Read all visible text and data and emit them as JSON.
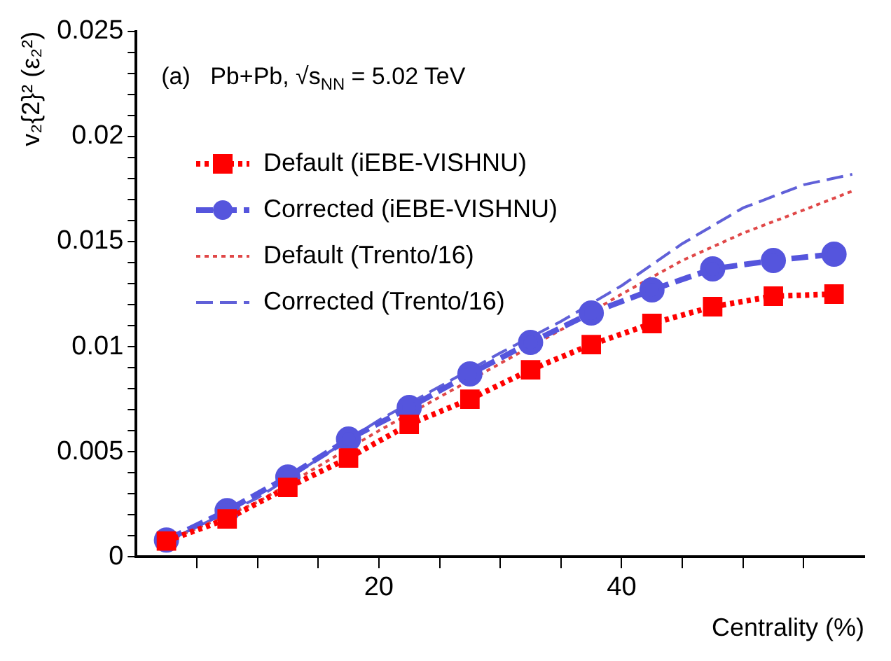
{
  "chart_data": {
    "type": "line",
    "xlabel": "Centrality (%)",
    "ylabel": "v₂{2}² (ε₂²)",
    "annotations": [
      "(a)   Pb+Pb, √s$_{NN}$ = 5.02 TeV"
    ],
    "xlim": [
      0,
      60
    ],
    "ylim": [
      0,
      0.025
    ],
    "xticks": [
      {
        "value": 5,
        "label": null
      },
      {
        "value": 10,
        "label": null
      },
      {
        "value": 15,
        "label": null
      },
      20,
      {
        "value": 25,
        "label": null
      },
      {
        "value": 30,
        "label": null
      },
      {
        "value": 35,
        "label": null
      },
      40,
      {
        "value": 45,
        "label": null
      },
      {
        "value": 50,
        "label": null
      },
      {
        "value": 55,
        "label": null
      }
    ],
    "yticks": [
      0,
      {
        "value": 0.001,
        "label": null
      },
      {
        "value": 0.002,
        "label": null
      },
      {
        "value": 0.003,
        "label": null
      },
      {
        "value": 0.004,
        "label": null
      },
      0.005,
      {
        "value": 0.006,
        "label": null
      },
      {
        "value": 0.007,
        "label": null
      },
      {
        "value": 0.008,
        "label": null
      },
      {
        "value": 0.009,
        "label": null
      },
      0.01,
      {
        "value": 0.011,
        "label": null
      },
      {
        "value": 0.012,
        "label": null
      },
      {
        "value": 0.013,
        "label": null
      },
      {
        "value": 0.014,
        "label": null
      },
      0.015,
      {
        "value": 0.016,
        "label": null
      },
      {
        "value": 0.017,
        "label": null
      },
      {
        "value": 0.018,
        "label": null
      },
      {
        "value": 0.019,
        "label": null
      },
      0.02,
      {
        "value": 0.021,
        "label": null
      },
      {
        "value": 0.022,
        "label": null
      },
      {
        "value": 0.023,
        "label": null
      },
      {
        "value": 0.024,
        "label": null
      },
      0.025
    ],
    "grid": false,
    "legend": "top left",
    "series": [
      {
        "name": "Default (iEBE-VISHNU)",
        "color": "#ff0000",
        "marker": "square",
        "line_style": "dotted",
        "x": [
          2.5,
          7.5,
          12.5,
          17.5,
          22.5,
          27.5,
          32.5,
          37.5,
          42.5,
          47.5,
          52.5,
          57.5
        ],
        "values": [
          0.00075,
          0.0018,
          0.0033,
          0.0047,
          0.0063,
          0.0075,
          0.0089,
          0.0101,
          0.0111,
          0.0119,
          0.0124,
          0.0125
        ]
      },
      {
        "name": "Corrected (iEBE-VISHNU)",
        "color": "#5555dd",
        "marker": "circle",
        "line_style": "dashed",
        "x": [
          2.5,
          7.5,
          12.5,
          17.5,
          22.5,
          27.5,
          32.5,
          37.5,
          42.5,
          47.5,
          52.5,
          57.5
        ],
        "values": [
          0.0008,
          0.0022,
          0.0038,
          0.0056,
          0.0071,
          0.0087,
          0.0102,
          0.0116,
          0.0127,
          0.0137,
          0.0141,
          0.0144
        ]
      },
      {
        "name": "Default (Trento/16)",
        "color": "#e04848",
        "marker": "none",
        "line_style": "dotted",
        "x": [
          2,
          10,
          20,
          30,
          35,
          40,
          45,
          50,
          55,
          59
        ],
        "values": [
          0.0006,
          0.0026,
          0.006,
          0.0092,
          0.0108,
          0.0125,
          0.0141,
          0.0154,
          0.0165,
          0.0174
        ]
      },
      {
        "name": "Corrected (Trento/16)",
        "color": "#6060d8",
        "marker": "none",
        "line_style": "dashed",
        "x": [
          2,
          10,
          20,
          30,
          35,
          40,
          45,
          50,
          55,
          59
        ],
        "values": [
          0.0006,
          0.0028,
          0.0065,
          0.0097,
          0.0112,
          0.0129,
          0.0149,
          0.0166,
          0.0177,
          0.0182
        ]
      }
    ]
  }
}
